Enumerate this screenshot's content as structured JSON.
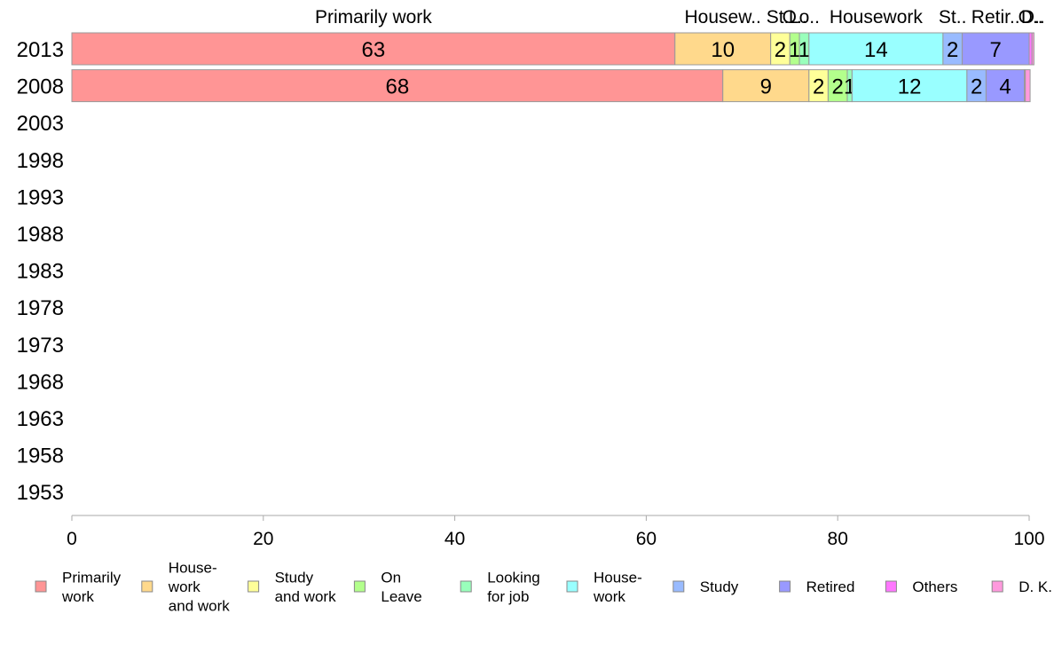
{
  "chart_data": {
    "type": "bar",
    "orientation": "horizontal",
    "stacked": true,
    "categories": [
      "2013",
      "2008",
      "2003",
      "1998",
      "1993",
      "1988",
      "1983",
      "1978",
      "1973",
      "1968",
      "1963",
      "1958",
      "1953"
    ],
    "series": [
      {
        "name": "Primarily\nwork",
        "color": "#ff9595",
        "values": [
          63,
          68,
          null,
          null,
          null,
          null,
          null,
          null,
          null,
          null,
          null,
          null,
          null
        ]
      },
      {
        "name": "House-\nwork\nand work",
        "color": "#ffd98c",
        "values": [
          10,
          9,
          null,
          null,
          null,
          null,
          null,
          null,
          null,
          null,
          null,
          null,
          null
        ]
      },
      {
        "name": "Study\nand work",
        "color": "#ffff99",
        "values": [
          2,
          2,
          null,
          null,
          null,
          null,
          null,
          null,
          null,
          null,
          null,
          null,
          null
        ]
      },
      {
        "name": "On\nLeave",
        "color": "#b3ff8c",
        "values": [
          1,
          2,
          null,
          null,
          null,
          null,
          null,
          null,
          null,
          null,
          null,
          null,
          null
        ]
      },
      {
        "name": "Looking\nfor job",
        "color": "#99ffbb",
        "values": [
          1,
          0.5,
          null,
          null,
          null,
          null,
          null,
          null,
          null,
          null,
          null,
          null,
          null
        ]
      },
      {
        "name": "House-\nwork",
        "color": "#99ffff",
        "values": [
          14,
          12,
          null,
          null,
          null,
          null,
          null,
          null,
          null,
          null,
          null,
          null,
          null
        ]
      },
      {
        "name": "Study",
        "color": "#99bbff",
        "values": [
          2,
          2,
          null,
          null,
          null,
          null,
          null,
          null,
          null,
          null,
          null,
          null,
          null
        ]
      },
      {
        "name": "Retired",
        "color": "#9999ff",
        "values": [
          7,
          4,
          null,
          null,
          null,
          null,
          null,
          null,
          null,
          null,
          null,
          null,
          null
        ]
      },
      {
        "name": "Others",
        "color": "#ff77ff",
        "values": [
          0.3,
          0.1,
          null,
          null,
          null,
          null,
          null,
          null,
          null,
          null,
          null,
          null,
          null
        ]
      },
      {
        "name": "D. K.",
        "color": "#ff99dd",
        "values": [
          0.2,
          0.5,
          null,
          null,
          null,
          null,
          null,
          null,
          null,
          null,
          null,
          null,
          null
        ]
      }
    ],
    "data_labels_2013": [
      "63",
      "10",
      "2",
      "1",
      "1",
      "14",
      "2",
      "7",
      "",
      ""
    ],
    "data_labels_2008": [
      "68",
      "9",
      "2",
      "2",
      "1",
      "12",
      "2",
      "4",
      "",
      ""
    ],
    "top_labels": [
      "Primarily work",
      "Housew..",
      "St..",
      "O..",
      "Lo..",
      "Housework",
      "St..",
      "Retir..",
      "O..",
      "D.."
    ],
    "xlim": [
      0,
      100
    ],
    "xticks": [
      "0",
      "20",
      "40",
      "60",
      "80",
      "100"
    ],
    "xlabel": "",
    "ylabel": "",
    "title": "",
    "legend_position": "bottom",
    "grid": false
  }
}
